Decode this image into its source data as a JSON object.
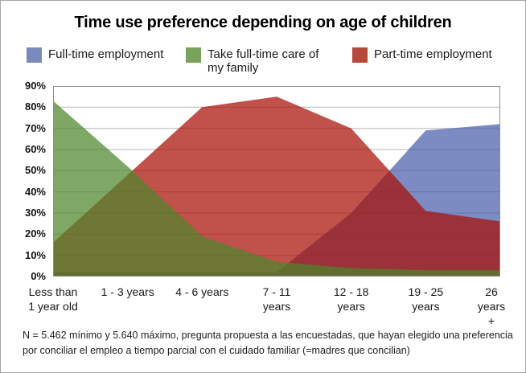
{
  "chart_data": {
    "type": "area",
    "title": "Time use preference depending on age of children",
    "categories": [
      "Less than\n1 year old",
      "1 - 3 years",
      "4 - 6 years",
      "7 - 11\nyears",
      "12 - 18\nyears",
      "19 - 25\nyears",
      "26 years +"
    ],
    "series": [
      {
        "name": "Full-time employment",
        "legend_color": "#7B8ABD",
        "fill_color": "#4A5EAA",
        "values": [
          2,
          2,
          2,
          2,
          30,
          69,
          72
        ]
      },
      {
        "name": "Take full-time care of my family",
        "legend_color": "#79A35D",
        "fill_color": "#4D8529",
        "values": [
          83,
          52,
          19,
          7,
          4,
          3,
          3
        ]
      },
      {
        "name": "Part-time employment",
        "legend_color": "#B5493C",
        "fill_color": "#A80F06",
        "values": [
          16,
          48,
          80,
          85,
          70,
          31,
          26
        ]
      }
    ],
    "draw_order": [
      0,
      2,
      1
    ],
    "fill_opacity": 0.72,
    "ylim": [
      0,
      90
    ],
    "ytick_step": 10,
    "ytick_labels": [
      "90%",
      "80%",
      "70%",
      "60%",
      "50%",
      "40%",
      "30%",
      "20%",
      "10%",
      "0%"
    ],
    "grid": true,
    "grid_color": "#b5b5b5",
    "plot_border_color": "#8f8f8f",
    "legend_position": "top",
    "footnote": "N = 5.462  mínimo y 5.640 máximo,  pregunta  propuesta a las encuestadas, que hayan elegido una preferencia por conciliar el empleo a tiempo parcial con el cuidado familiar (=madres que concilian)"
  }
}
